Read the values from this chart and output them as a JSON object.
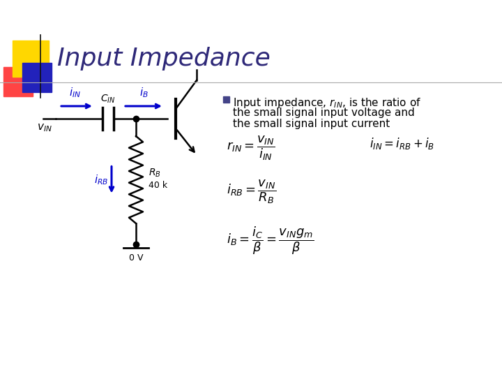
{
  "title": "Input Impedance",
  "title_color": "#2E2878",
  "title_fontsize": 26,
  "background_color": "#ffffff",
  "accent_yellow": "#FFD700",
  "accent_red": "#FF4444",
  "accent_blue": "#2222BB",
  "circuit_blue": "#0000CC",
  "bullet_color": "#4444AA",
  "circuit_labels": {
    "i_IN": "$i_{IN}$",
    "i_B": "$i_B$",
    "C_IN": "$C_{IN}$",
    "v_IN": "$v_{IN}$",
    "i_RB": "$i_{RB}$",
    "R_B": "$R_B$",
    "R_val": "40 k",
    "gnd": "0 V"
  }
}
